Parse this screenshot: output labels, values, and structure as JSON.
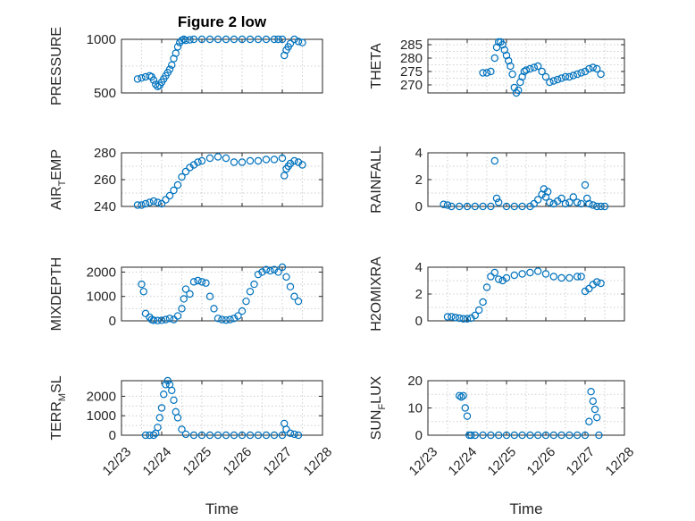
{
  "figure": {
    "title": "Figure 2 low",
    "xlabel": "Time",
    "x_tick_labels": [
      "12/23",
      "12/24",
      "12/25",
      "12/26",
      "12/27",
      "12/28"
    ],
    "marker_color": "#0072bd"
  },
  "chart_data": [
    {
      "type": "scatter",
      "name": "PRESSURE",
      "ylabel": "PRESSURE",
      "ylabel_sub": "",
      "ylim": [
        500,
        1000
      ],
      "yticks": [
        500,
        1000
      ],
      "xlim": [
        0,
        5
      ],
      "x": [
        0.4,
        0.5,
        0.6,
        0.7,
        0.75,
        0.8,
        0.85,
        0.9,
        0.95,
        1.0,
        1.05,
        1.1,
        1.15,
        1.2,
        1.25,
        1.3,
        1.35,
        1.4,
        1.45,
        1.5,
        1.55,
        1.6,
        1.7,
        1.8,
        2.0,
        2.2,
        2.4,
        2.6,
        2.8,
        3.0,
        3.2,
        3.4,
        3.6,
        3.8,
        3.9,
        4.0,
        4.05,
        4.1,
        4.15,
        4.2,
        4.3,
        4.4,
        4.5
      ],
      "y": [
        630,
        640,
        650,
        660,
        650,
        620,
        580,
        560,
        570,
        600,
        630,
        660,
        690,
        720,
        760,
        820,
        870,
        930,
        970,
        990,
        1000,
        990,
        995,
        1000,
        1000,
        1000,
        1000,
        1000,
        1000,
        1000,
        1000,
        1000,
        1000,
        1000,
        1000,
        1000,
        850,
        900,
        930,
        960,
        1000,
        980,
        970
      ]
    },
    {
      "type": "scatter",
      "name": "THETA",
      "ylabel": "THETA",
      "ylabel_sub": "",
      "ylim": [
        267,
        287
      ],
      "yticks": [
        270,
        275,
        280,
        285
      ],
      "xlim": [
        0,
        5
      ],
      "x": [
        1.4,
        1.5,
        1.6,
        1.7,
        1.75,
        1.8,
        1.85,
        1.9,
        1.95,
        2.0,
        2.05,
        2.1,
        2.15,
        2.2,
        2.25,
        2.3,
        2.35,
        2.4,
        2.45,
        2.5,
        2.6,
        2.7,
        2.8,
        2.9,
        3.0,
        3.1,
        3.2,
        3.3,
        3.4,
        3.5,
        3.6,
        3.7,
        3.8,
        3.9,
        4.0,
        4.1,
        4.2,
        4.3,
        4.4
      ],
      "y": [
        274.5,
        274.5,
        275,
        280,
        284,
        286,
        286,
        285,
        283,
        281,
        279,
        277,
        274,
        269,
        267,
        268,
        271,
        273,
        275,
        275.5,
        276,
        276.5,
        277,
        275,
        273,
        271,
        271.5,
        272,
        272.5,
        273,
        273,
        273.5,
        274,
        274.5,
        275,
        276,
        276.5,
        276,
        274
      ]
    },
    {
      "type": "scatter",
      "name": "AIR_TEMP",
      "ylabel": "AIR",
      "ylabel_sub": "T",
      "ylabel_suffix": "EMP",
      "ylim": [
        240,
        280
      ],
      "yticks": [
        240,
        260,
        280
      ],
      "xlim": [
        0,
        5
      ],
      "x": [
        0.4,
        0.5,
        0.6,
        0.7,
        0.8,
        0.9,
        1.0,
        1.1,
        1.2,
        1.3,
        1.4,
        1.5,
        1.6,
        1.7,
        1.8,
        1.9,
        2.0,
        2.2,
        2.4,
        2.6,
        2.8,
        3.0,
        3.2,
        3.4,
        3.6,
        3.8,
        4.0,
        4.05,
        4.1,
        4.15,
        4.2,
        4.3,
        4.4,
        4.5
      ],
      "y": [
        241,
        241,
        242,
        243,
        244,
        243,
        242,
        245,
        248,
        252,
        256,
        262,
        266,
        269,
        271,
        273,
        274,
        276,
        277,
        276,
        273,
        273,
        274,
        274,
        275,
        275,
        276,
        263,
        268,
        270,
        272,
        274,
        273,
        271
      ]
    },
    {
      "type": "scatter",
      "name": "RAINFALL",
      "ylabel": "RAINFALL",
      "ylabel_sub": "",
      "ylim": [
        0,
        4
      ],
      "yticks": [
        0,
        2,
        4
      ],
      "xlim": [
        0,
        5
      ],
      "x": [
        0.4,
        0.5,
        0.6,
        0.8,
        1.0,
        1.2,
        1.4,
        1.6,
        1.7,
        1.75,
        1.8,
        2.0,
        2.2,
        2.4,
        2.6,
        2.7,
        2.8,
        2.9,
        2.95,
        3.0,
        3.05,
        3.1,
        3.2,
        3.3,
        3.4,
        3.5,
        3.6,
        3.7,
        3.8,
        3.9,
        4.0,
        4.05,
        4.1,
        4.2,
        4.3,
        4.4,
        4.5
      ],
      "y": [
        0.15,
        0.1,
        0,
        0,
        0,
        0,
        0,
        0,
        3.4,
        0.6,
        0.3,
        0,
        0,
        0,
        0,
        0.2,
        0.5,
        0.9,
        1.3,
        0.7,
        1.1,
        0.3,
        0.2,
        0.4,
        0.6,
        0.2,
        0.3,
        0.7,
        0.3,
        0.2,
        1.6,
        0.6,
        0.2,
        0.1,
        0,
        0,
        0
      ]
    },
    {
      "type": "scatter",
      "name": "MIXDEPTH",
      "ylabel": "MIXDEPTH",
      "ylabel_sub": "",
      "ylim": [
        0,
        2200
      ],
      "yticks": [
        0,
        1000,
        2000
      ],
      "xlim": [
        0,
        5
      ],
      "x": [
        0.5,
        0.55,
        0.6,
        0.7,
        0.75,
        0.8,
        0.9,
        1.0,
        1.1,
        1.2,
        1.3,
        1.4,
        1.5,
        1.55,
        1.6,
        1.7,
        1.8,
        1.9,
        2.0,
        2.1,
        2.2,
        2.3,
        2.4,
        2.5,
        2.6,
        2.7,
        2.8,
        2.9,
        3.0,
        3.1,
        3.2,
        3.3,
        3.4,
        3.5,
        3.6,
        3.7,
        3.8,
        3.9,
        4.0,
        4.1,
        4.2,
        4.3,
        4.4
      ],
      "y": [
        1500,
        1200,
        300,
        150,
        50,
        20,
        10,
        20,
        50,
        100,
        50,
        200,
        500,
        900,
        1300,
        1100,
        1600,
        1650,
        1600,
        1550,
        1000,
        500,
        100,
        50,
        30,
        50,
        100,
        200,
        400,
        800,
        1200,
        1500,
        1900,
        2000,
        2100,
        2050,
        2100,
        2000,
        2200,
        1800,
        1400,
        1000,
        800
      ]
    },
    {
      "type": "scatter",
      "name": "H2OMIXRA",
      "ylabel": "H2OMIXRA",
      "ylabel_sub": "",
      "ylim": [
        0,
        4
      ],
      "yticks": [
        0,
        2,
        4
      ],
      "xlim": [
        0,
        5
      ],
      "x": [
        0.5,
        0.6,
        0.7,
        0.8,
        0.9,
        1.0,
        1.1,
        1.2,
        1.3,
        1.4,
        1.5,
        1.6,
        1.7,
        1.8,
        1.9,
        2.0,
        2.2,
        2.4,
        2.6,
        2.8,
        3.0,
        3.2,
        3.4,
        3.6,
        3.8,
        3.9,
        4.0,
        4.1,
        4.2,
        4.3,
        4.4
      ],
      "y": [
        0.3,
        0.3,
        0.25,
        0.2,
        0.15,
        0.15,
        0.2,
        0.4,
        0.8,
        1.4,
        2.5,
        3.3,
        3.6,
        3.1,
        3.0,
        3.2,
        3.4,
        3.5,
        3.6,
        3.7,
        3.5,
        3.3,
        3.2,
        3.2,
        3.3,
        3.3,
        2.2,
        2.4,
        2.7,
        2.9,
        2.8
      ]
    },
    {
      "type": "scatter",
      "name": "TERR_MSL",
      "ylabel": "TERR",
      "ylabel_sub": "M",
      "ylabel_suffix": "SL",
      "ylim": [
        0,
        2800
      ],
      "yticks": [
        0,
        1000,
        2000
      ],
      "xlim": [
        0,
        5
      ],
      "x": [
        0.6,
        0.7,
        0.8,
        0.85,
        0.9,
        0.95,
        1.0,
        1.05,
        1.1,
        1.15,
        1.2,
        1.25,
        1.3,
        1.35,
        1.4,
        1.5,
        1.6,
        1.8,
        2.0,
        2.2,
        2.4,
        2.6,
        2.8,
        3.0,
        3.2,
        3.4,
        3.6,
        3.8,
        4.0,
        4.05,
        4.1,
        4.2,
        4.3,
        4.4
      ],
      "y": [
        0,
        0,
        0,
        100,
        400,
        900,
        1400,
        2100,
        2600,
        2800,
        2600,
        2300,
        1800,
        1200,
        900,
        300,
        50,
        0,
        0,
        0,
        0,
        0,
        0,
        0,
        0,
        0,
        0,
        0,
        0,
        600,
        300,
        100,
        50,
        0
      ]
    },
    {
      "type": "scatter",
      "name": "SUN_FLUX",
      "ylabel": "SUN",
      "ylabel_sub": "F",
      "ylabel_suffix": "LUX",
      "ylim": [
        0,
        20
      ],
      "yticks": [
        0,
        10,
        20
      ],
      "xlim": [
        0,
        5
      ],
      "x": [
        0.8,
        0.85,
        0.9,
        0.95,
        1.0,
        1.05,
        1.1,
        1.2,
        1.4,
        1.6,
        1.8,
        2.0,
        2.2,
        2.4,
        2.6,
        2.8,
        3.0,
        3.2,
        3.4,
        3.6,
        3.8,
        4.0,
        4.1,
        4.15,
        4.2,
        4.25,
        4.3,
        4.35
      ],
      "y": [
        14.5,
        14.0,
        14.5,
        10.0,
        7.0,
        0,
        0,
        0,
        0,
        0,
        0,
        0,
        0,
        0,
        0,
        0,
        0,
        0,
        0,
        0,
        0,
        0,
        5.0,
        16.0,
        12.5,
        9.5,
        6.5,
        0
      ]
    }
  ]
}
